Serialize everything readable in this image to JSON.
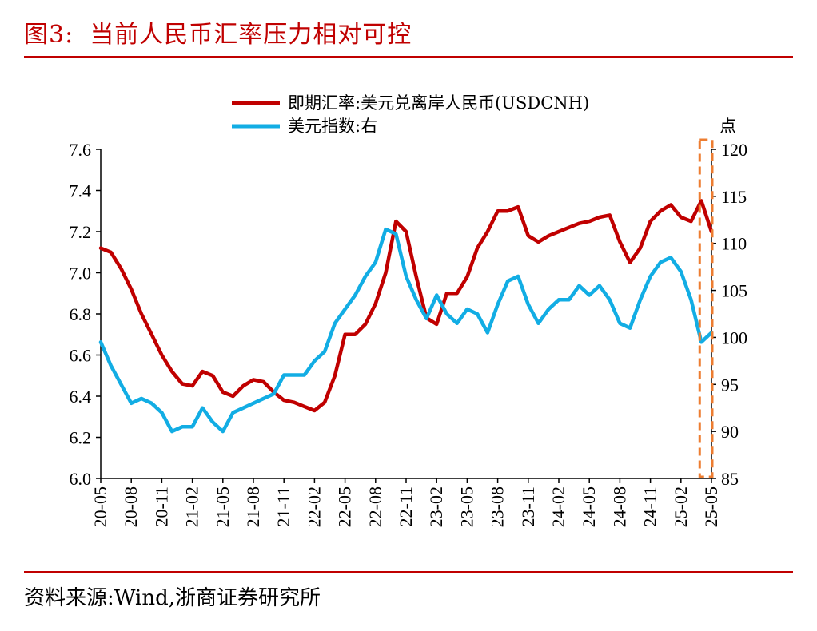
{
  "figure": {
    "label": "图3:",
    "title": "当前人民币汇率压力相对可控",
    "source": "资料来源:Wind,浙商证券研究所"
  },
  "colors": {
    "accent": "#c00000",
    "cnh": "#c00000",
    "dxy": "#12ade4",
    "highlight": "#ed7d31"
  },
  "chart_data": {
    "type": "line",
    "right_axis_unit": "点",
    "x_ticks": [
      "20-05",
      "20-08",
      "20-11",
      "21-02",
      "21-05",
      "21-08",
      "21-11",
      "22-02",
      "22-05",
      "22-08",
      "22-11",
      "23-02",
      "23-05",
      "23-08",
      "23-11",
      "24-02",
      "24-05",
      "24-08",
      "24-11",
      "25-02",
      "25-05"
    ],
    "x_range": [
      "2020-05",
      "2025-05"
    ],
    "y_left": {
      "range": [
        6.0,
        7.6
      ],
      "ticks": [
        "6.0",
        "6.2",
        "6.4",
        "6.6",
        "6.8",
        "7.0",
        "7.2",
        "7.4",
        "7.6"
      ]
    },
    "y_right": {
      "range": [
        85,
        120
      ],
      "ticks": [
        "85",
        "90",
        "95",
        "100",
        "105",
        "110",
        "115",
        "120"
      ]
    },
    "legend_position": "top-center",
    "grid": false,
    "highlight_region": {
      "x_from": "2025-04",
      "x_to": "2025-05",
      "style": "dashed box"
    },
    "series": [
      {
        "name": "即期汇率:美元兑离岸人民币(USDCNH)",
        "axis": "left",
        "x": [
          "2020-05",
          "2020-06",
          "2020-07",
          "2020-08",
          "2020-09",
          "2020-10",
          "2020-11",
          "2020-12",
          "2021-01",
          "2021-02",
          "2021-03",
          "2021-04",
          "2021-05",
          "2021-06",
          "2021-07",
          "2021-08",
          "2021-09",
          "2021-10",
          "2021-11",
          "2021-12",
          "2022-01",
          "2022-02",
          "2022-03",
          "2022-04",
          "2022-05",
          "2022-06",
          "2022-07",
          "2022-08",
          "2022-09",
          "2022-10",
          "2022-11",
          "2022-12",
          "2023-01",
          "2023-02",
          "2023-03",
          "2023-04",
          "2023-05",
          "2023-06",
          "2023-07",
          "2023-08",
          "2023-09",
          "2023-10",
          "2023-11",
          "2023-12",
          "2024-01",
          "2024-02",
          "2024-03",
          "2024-04",
          "2024-05",
          "2024-06",
          "2024-07",
          "2024-08",
          "2024-09",
          "2024-10",
          "2024-11",
          "2024-12",
          "2025-01",
          "2025-02",
          "2025-03",
          "2025-04",
          "2025-05"
        ],
        "values": [
          7.12,
          7.1,
          7.02,
          6.92,
          6.8,
          6.7,
          6.6,
          6.52,
          6.46,
          6.45,
          6.52,
          6.5,
          6.42,
          6.4,
          6.45,
          6.48,
          6.47,
          6.42,
          6.38,
          6.37,
          6.35,
          6.33,
          6.37,
          6.5,
          6.7,
          6.7,
          6.75,
          6.85,
          7.0,
          7.25,
          7.2,
          6.98,
          6.78,
          6.75,
          6.9,
          6.9,
          6.98,
          7.12,
          7.2,
          7.3,
          7.3,
          7.32,
          7.18,
          7.15,
          7.18,
          7.2,
          7.22,
          7.24,
          7.25,
          7.27,
          7.28,
          7.15,
          7.05,
          7.12,
          7.25,
          7.3,
          7.33,
          7.27,
          7.25,
          7.35,
          7.2
        ]
      },
      {
        "name": "美元指数:右",
        "axis": "right",
        "x": [
          "2020-05",
          "2020-06",
          "2020-07",
          "2020-08",
          "2020-09",
          "2020-10",
          "2020-11",
          "2020-12",
          "2021-01",
          "2021-02",
          "2021-03",
          "2021-04",
          "2021-05",
          "2021-06",
          "2021-07",
          "2021-08",
          "2021-09",
          "2021-10",
          "2021-11",
          "2021-12",
          "2022-01",
          "2022-02",
          "2022-03",
          "2022-04",
          "2022-05",
          "2022-06",
          "2022-07",
          "2022-08",
          "2022-09",
          "2022-10",
          "2022-11",
          "2022-12",
          "2023-01",
          "2023-02",
          "2023-03",
          "2023-04",
          "2023-05",
          "2023-06",
          "2023-07",
          "2023-08",
          "2023-09",
          "2023-10",
          "2023-11",
          "2023-12",
          "2024-01",
          "2024-02",
          "2024-03",
          "2024-04",
          "2024-05",
          "2024-06",
          "2024-07",
          "2024-08",
          "2024-09",
          "2024-10",
          "2024-11",
          "2024-12",
          "2025-01",
          "2025-02",
          "2025-03",
          "2025-04",
          "2025-05"
        ],
        "values": [
          99.5,
          97.0,
          95.0,
          93.0,
          93.5,
          93.0,
          92.0,
          90.0,
          90.5,
          90.5,
          92.5,
          91.0,
          90.0,
          92.0,
          92.5,
          93.0,
          93.5,
          94.0,
          96.0,
          96.0,
          96.0,
          97.5,
          98.5,
          101.5,
          103.0,
          104.5,
          106.5,
          108.0,
          111.5,
          111.0,
          106.5,
          104.0,
          102.0,
          104.5,
          102.5,
          101.5,
          103.0,
          102.5,
          100.5,
          103.5,
          106.0,
          106.5,
          103.5,
          101.5,
          103.0,
          104.0,
          104.0,
          105.5,
          104.5,
          105.5,
          104.0,
          101.5,
          101.0,
          104.0,
          106.5,
          108.0,
          108.5,
          107.0,
          104.0,
          99.5,
          100.5
        ]
      }
    ]
  }
}
